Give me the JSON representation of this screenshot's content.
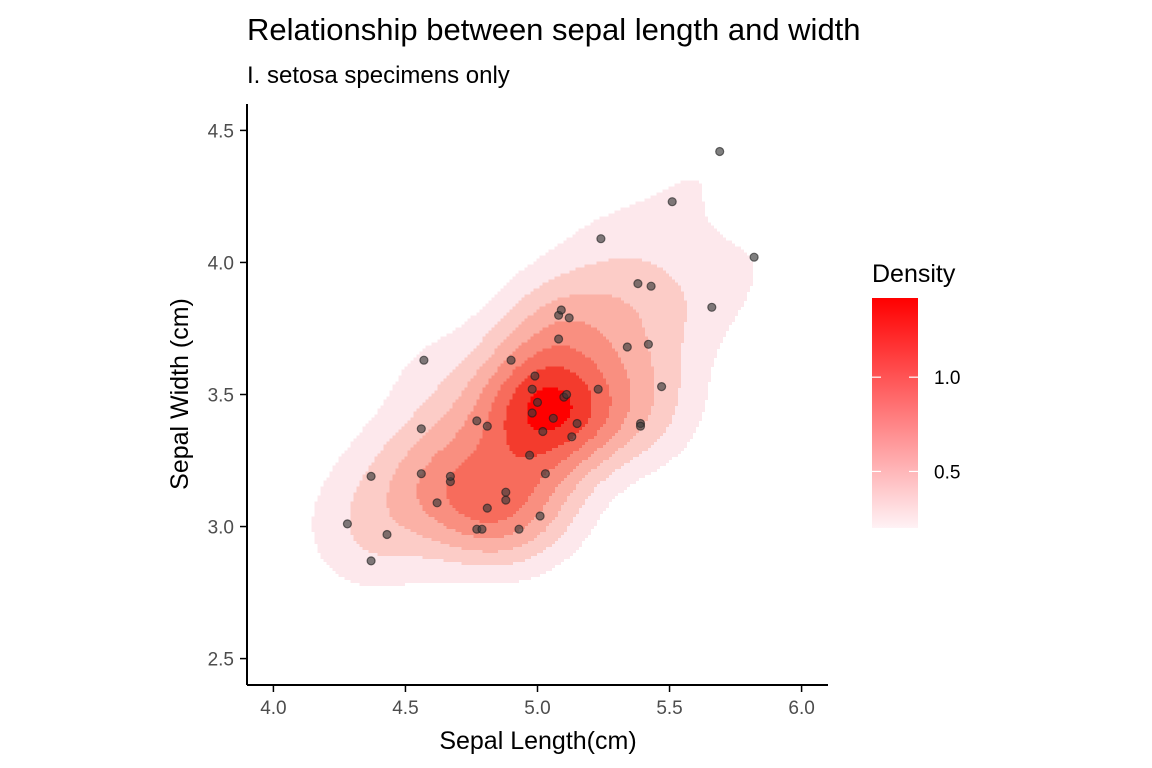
{
  "chart_data": {
    "type": "scatter",
    "title": "Relationship between sepal length and width",
    "subtitle": "I. setosa specimens only",
    "xlabel": "Sepal Length(cm)",
    "ylabel": "Sepal Width (cm)",
    "xlim": [
      3.9,
      6.1
    ],
    "ylim": [
      2.4,
      4.6
    ],
    "xticks": [
      4.0,
      4.5,
      5.0,
      5.5,
      6.0
    ],
    "xtick_labels": [
      "4.0",
      "4.5",
      "5.0",
      "5.5",
      "6.0"
    ],
    "yticks": [
      2.5,
      3.0,
      3.5,
      4.0,
      4.5
    ],
    "ytick_labels": [
      "2.5",
      "3.0",
      "3.5",
      "4.0",
      "4.5"
    ],
    "grid": false,
    "point_color": "#3a3a3a",
    "points": [
      {
        "x": 4.28,
        "y": 3.01
      },
      {
        "x": 4.37,
        "y": 3.19
      },
      {
        "x": 4.37,
        "y": 2.87
      },
      {
        "x": 4.43,
        "y": 2.97
      },
      {
        "x": 4.57,
        "y": 3.63
      },
      {
        "x": 4.56,
        "y": 3.37
      },
      {
        "x": 4.56,
        "y": 3.2
      },
      {
        "x": 4.62,
        "y": 3.09
      },
      {
        "x": 4.67,
        "y": 3.17
      },
      {
        "x": 4.67,
        "y": 3.19
      },
      {
        "x": 4.77,
        "y": 3.4
      },
      {
        "x": 4.77,
        "y": 2.99
      },
      {
        "x": 4.79,
        "y": 2.99
      },
      {
        "x": 4.81,
        "y": 3.07
      },
      {
        "x": 4.81,
        "y": 3.38
      },
      {
        "x": 4.88,
        "y": 3.1
      },
      {
        "x": 4.88,
        "y": 3.13
      },
      {
        "x": 4.9,
        "y": 3.63
      },
      {
        "x": 4.93,
        "y": 2.99
      },
      {
        "x": 4.97,
        "y": 3.27
      },
      {
        "x": 4.98,
        "y": 3.43
      },
      {
        "x": 4.98,
        "y": 3.52
      },
      {
        "x": 4.99,
        "y": 3.57
      },
      {
        "x": 5.0,
        "y": 3.47
      },
      {
        "x": 5.01,
        "y": 3.04
      },
      {
        "x": 5.02,
        "y": 3.36
      },
      {
        "x": 5.03,
        "y": 3.2
      },
      {
        "x": 5.06,
        "y": 3.41
      },
      {
        "x": 5.08,
        "y": 3.71
      },
      {
        "x": 5.08,
        "y": 3.8
      },
      {
        "x": 5.09,
        "y": 3.82
      },
      {
        "x": 5.1,
        "y": 3.49
      },
      {
        "x": 5.11,
        "y": 3.5
      },
      {
        "x": 5.12,
        "y": 3.79
      },
      {
        "x": 5.13,
        "y": 3.34
      },
      {
        "x": 5.15,
        "y": 3.39
      },
      {
        "x": 5.23,
        "y": 3.52
      },
      {
        "x": 5.24,
        "y": 4.09
      },
      {
        "x": 5.34,
        "y": 3.68
      },
      {
        "x": 5.38,
        "y": 3.92
      },
      {
        "x": 5.39,
        "y": 3.39
      },
      {
        "x": 5.39,
        "y": 3.38
      },
      {
        "x": 5.42,
        "y": 3.69
      },
      {
        "x": 5.43,
        "y": 3.91
      },
      {
        "x": 5.47,
        "y": 3.53
      },
      {
        "x": 5.51,
        "y": 4.23
      },
      {
        "x": 5.66,
        "y": 3.83
      },
      {
        "x": 5.69,
        "y": 4.42
      },
      {
        "x": 5.82,
        "y": 4.02
      }
    ],
    "density_bands": [
      {
        "level": 0.2,
        "color": "#fde8ec"
      },
      {
        "level": 0.4,
        "color": "#fcccc7"
      },
      {
        "level": 0.6,
        "color": "#fbb1a6"
      },
      {
        "level": 0.8,
        "color": "#f98f80"
      },
      {
        "level": 1.0,
        "color": "#f76c5c"
      },
      {
        "level": 1.2,
        "color": "#f33b2d"
      },
      {
        "level": 1.4,
        "color": "#fe0000"
      }
    ],
    "legend": {
      "title": "Density",
      "placement": "right",
      "range": [
        0.2,
        1.42
      ],
      "low_color": "#fff2f5",
      "high_color": "#ff0000",
      "ticks": [
        0.5,
        1.0
      ],
      "tick_labels": [
        "0.5",
        "1.0"
      ]
    }
  }
}
